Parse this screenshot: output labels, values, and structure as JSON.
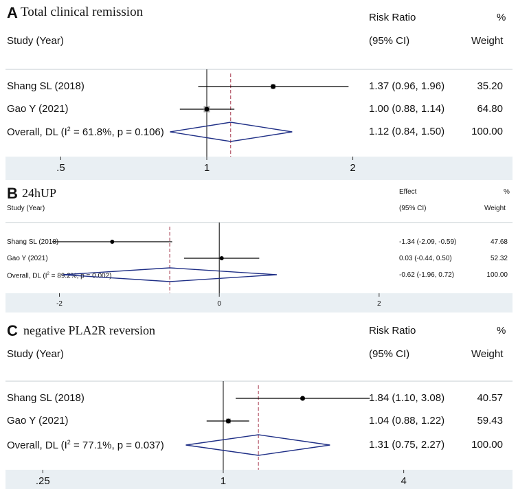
{
  "chart_data": [
    {
      "type": "forest",
      "panel_letter": "A",
      "title": "Total clinical remission",
      "col_headers": {
        "study": "Study (Year)",
        "effect_line1": "Risk Ratio",
        "effect_line2": "(95% CI)",
        "weight_line1": "%",
        "weight_line2": "Weight"
      },
      "scale": "log",
      "null_value": 1,
      "xlim": [
        0.4,
        2.5
      ],
      "xticks": [
        0.5,
        1,
        2
      ],
      "xtick_labels": [
        ".5",
        "1",
        "2"
      ],
      "pooled_estimate": 1.12,
      "studies": [
        {
          "label": "Shang SL (2018)",
          "est": 1.37,
          "lo": 0.96,
          "hi": 1.96,
          "ci_text": "1.37 (0.96, 1.96)",
          "weight": "35.20"
        },
        {
          "label": "Gao Y (2021)",
          "est": 1.0,
          "lo": 0.88,
          "hi": 1.14,
          "ci_text": "1.00 (0.88, 1.14)",
          "weight": "64.80"
        }
      ],
      "overall": {
        "label_pre": "Overall, DL (I",
        "label_sup": "2",
        "label_post": " = 61.8%, p = 0.106)",
        "est": 1.12,
        "lo": 0.84,
        "hi": 1.5,
        "ci_text": "1.12 (0.84, 1.50)",
        "weight": "100.00"
      }
    },
    {
      "type": "forest",
      "panel_letter": "B",
      "title": "24hUP",
      "col_headers": {
        "study": "Study (Year)",
        "effect_line1": "Effect",
        "effect_line2": "(95% CI)",
        "weight_line1": "%",
        "weight_line2": "Weight"
      },
      "scale": "linear",
      "null_value": 0,
      "xlim": [
        -2.4,
        2.5
      ],
      "xticks": [
        -2,
        0,
        2
      ],
      "xtick_labels": [
        "-2",
        "0",
        "2"
      ],
      "pooled_estimate": -0.62,
      "studies": [
        {
          "label": "Shang SL (2018)",
          "est": -1.34,
          "lo": -2.09,
          "hi": -0.59,
          "ci_text": "-1.34 (-2.09, -0.59)",
          "weight": "47.68"
        },
        {
          "label": "Gao Y (2021)",
          "est": 0.03,
          "lo": -0.44,
          "hi": 0.5,
          "ci_text": "0.03 (-0.44, 0.50)",
          "weight": "52.32"
        }
      ],
      "overall": {
        "label_pre": "Overall, DL (I",
        "label_sup": "2",
        "label_post": " = 89.2%, p = 0.002)",
        "est": -0.62,
        "lo": -1.96,
        "hi": 0.72,
        "ci_text": "-0.62 (-1.96, 0.72)",
        "weight": "100.00"
      }
    },
    {
      "type": "forest",
      "panel_letter": "C",
      "title": "negative PLA2R reversion",
      "col_headers": {
        "study": "Study (Year)",
        "effect_line1": "Risk Ratio",
        "effect_line2": "(95% CI)",
        "weight_line1": "%",
        "weight_line2": "Weight"
      },
      "scale": "log",
      "null_value": 1,
      "xlim": [
        0.2,
        5.5
      ],
      "xticks": [
        0.25,
        1,
        4
      ],
      "xtick_labels": [
        ".25",
        "1",
        "4"
      ],
      "pooled_estimate": 1.31,
      "studies": [
        {
          "label": "Shang SL (2018)",
          "est": 1.84,
          "lo": 1.1,
          "hi": 3.08,
          "ci_text": "1.84 (1.10, 3.08)",
          "weight": "40.57"
        },
        {
          "label": "Gao Y (2021)",
          "est": 1.04,
          "lo": 0.88,
          "hi": 1.22,
          "ci_text": "1.04 (0.88, 1.22)",
          "weight": "59.43"
        }
      ],
      "overall": {
        "label_pre": "Overall, DL (I",
        "label_sup": "2",
        "label_post": " = 77.1%, p = 0.037)",
        "est": 1.31,
        "lo": 0.75,
        "hi": 2.27,
        "ci_text": "1.31 (0.75, 2.27)",
        "weight": "100.00"
      }
    }
  ]
}
